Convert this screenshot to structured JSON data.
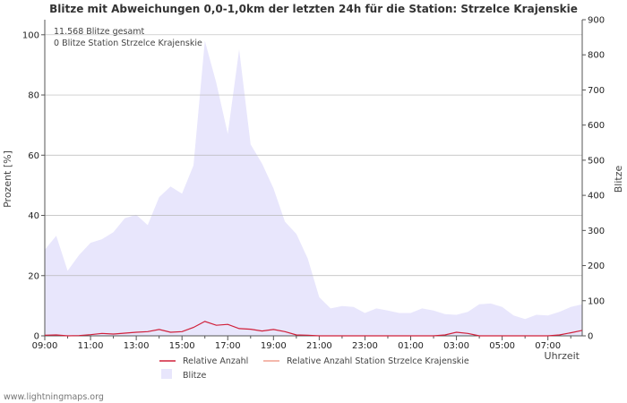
{
  "chart_data": {
    "type": "area",
    "title": "Blitze mit Abweichungen 0,0-1,0km der letzten 24h für die Station: Strzelce Krajenskie",
    "annotations": [
      "11.568 Blitze gesamt",
      "0 Blitze Station Strzelce Krajenskie"
    ],
    "xlabel": "Uhrzeit",
    "ylabel_left": "Prozent   [%]",
    "ylabel_right": "Blitze",
    "ylim_left": [
      0,
      105
    ],
    "ylim_right": [
      0,
      900
    ],
    "yticks_left": [
      "0",
      "20",
      "40",
      "60",
      "80",
      "100"
    ],
    "yticks_right": [
      "0",
      "100",
      "200",
      "300",
      "400",
      "500",
      "600",
      "700",
      "800",
      "900"
    ],
    "x_tick_labels": [
      "09:00",
      "11:00",
      "13:00",
      "15:00",
      "17:00",
      "19:00",
      "21:00",
      "23:00",
      "01:00",
      "03:00",
      "05:00",
      "07:00"
    ],
    "x_hours": [
      9,
      9.5,
      10,
      10.5,
      11,
      11.5,
      12,
      12.5,
      13,
      13.5,
      14,
      14.5,
      15,
      15.5,
      16,
      16.5,
      17,
      17.5,
      18,
      18.5,
      19,
      19.5,
      20,
      20.5,
      21,
      21.5,
      22,
      22.5,
      23,
      23.5,
      24,
      24.5,
      25,
      25.5,
      26,
      26.5,
      27,
      27.5,
      28,
      28.5,
      29,
      29.5,
      30,
      30.5,
      31,
      31.5,
      32,
      32.5
    ],
    "series": [
      {
        "name": "Blitze",
        "axis": "right",
        "color": "#e8e6fc",
        "values": [
          245,
          285,
          185,
          230,
          265,
          275,
          295,
          335,
          345,
          315,
          395,
          425,
          405,
          485,
          840,
          720,
          575,
          815,
          545,
          490,
          420,
          325,
          290,
          220,
          110,
          78,
          85,
          82,
          65,
          78,
          72,
          65,
          65,
          78,
          72,
          62,
          60,
          68,
          90,
          92,
          82,
          58,
          48,
          60,
          58,
          68,
          82,
          90
        ]
      },
      {
        "name": "Relative Anzahl",
        "axis": "left",
        "color": "#d0203a",
        "values": [
          0.2,
          0.3,
          0.0,
          0.1,
          0.4,
          0.8,
          0.6,
          0.9,
          1.2,
          1.4,
          2.1,
          1.2,
          1.4,
          2.8,
          4.8,
          3.5,
          3.8,
          2.4,
          2.2,
          1.6,
          2.1,
          1.4,
          0.3,
          0.2,
          0.0,
          0.0,
          0.0,
          0.0,
          0.0,
          0.0,
          0.0,
          0.0,
          0.0,
          0.0,
          0.0,
          0.3,
          1.2,
          0.8,
          0.0,
          0.0,
          0.0,
          0.0,
          0.0,
          0.0,
          0.0,
          0.3,
          1.0,
          1.8
        ]
      },
      {
        "name": "Relative Anzahl Station Strzelce Krajenskie",
        "axis": "left",
        "color": "#f0a090",
        "values": []
      }
    ],
    "legend": [
      "Relative Anzahl",
      "Relative Anzahl Station Strzelce Krajenskie",
      "Blitze"
    ],
    "grid": true
  },
  "footer": "www.lightningmaps.org"
}
